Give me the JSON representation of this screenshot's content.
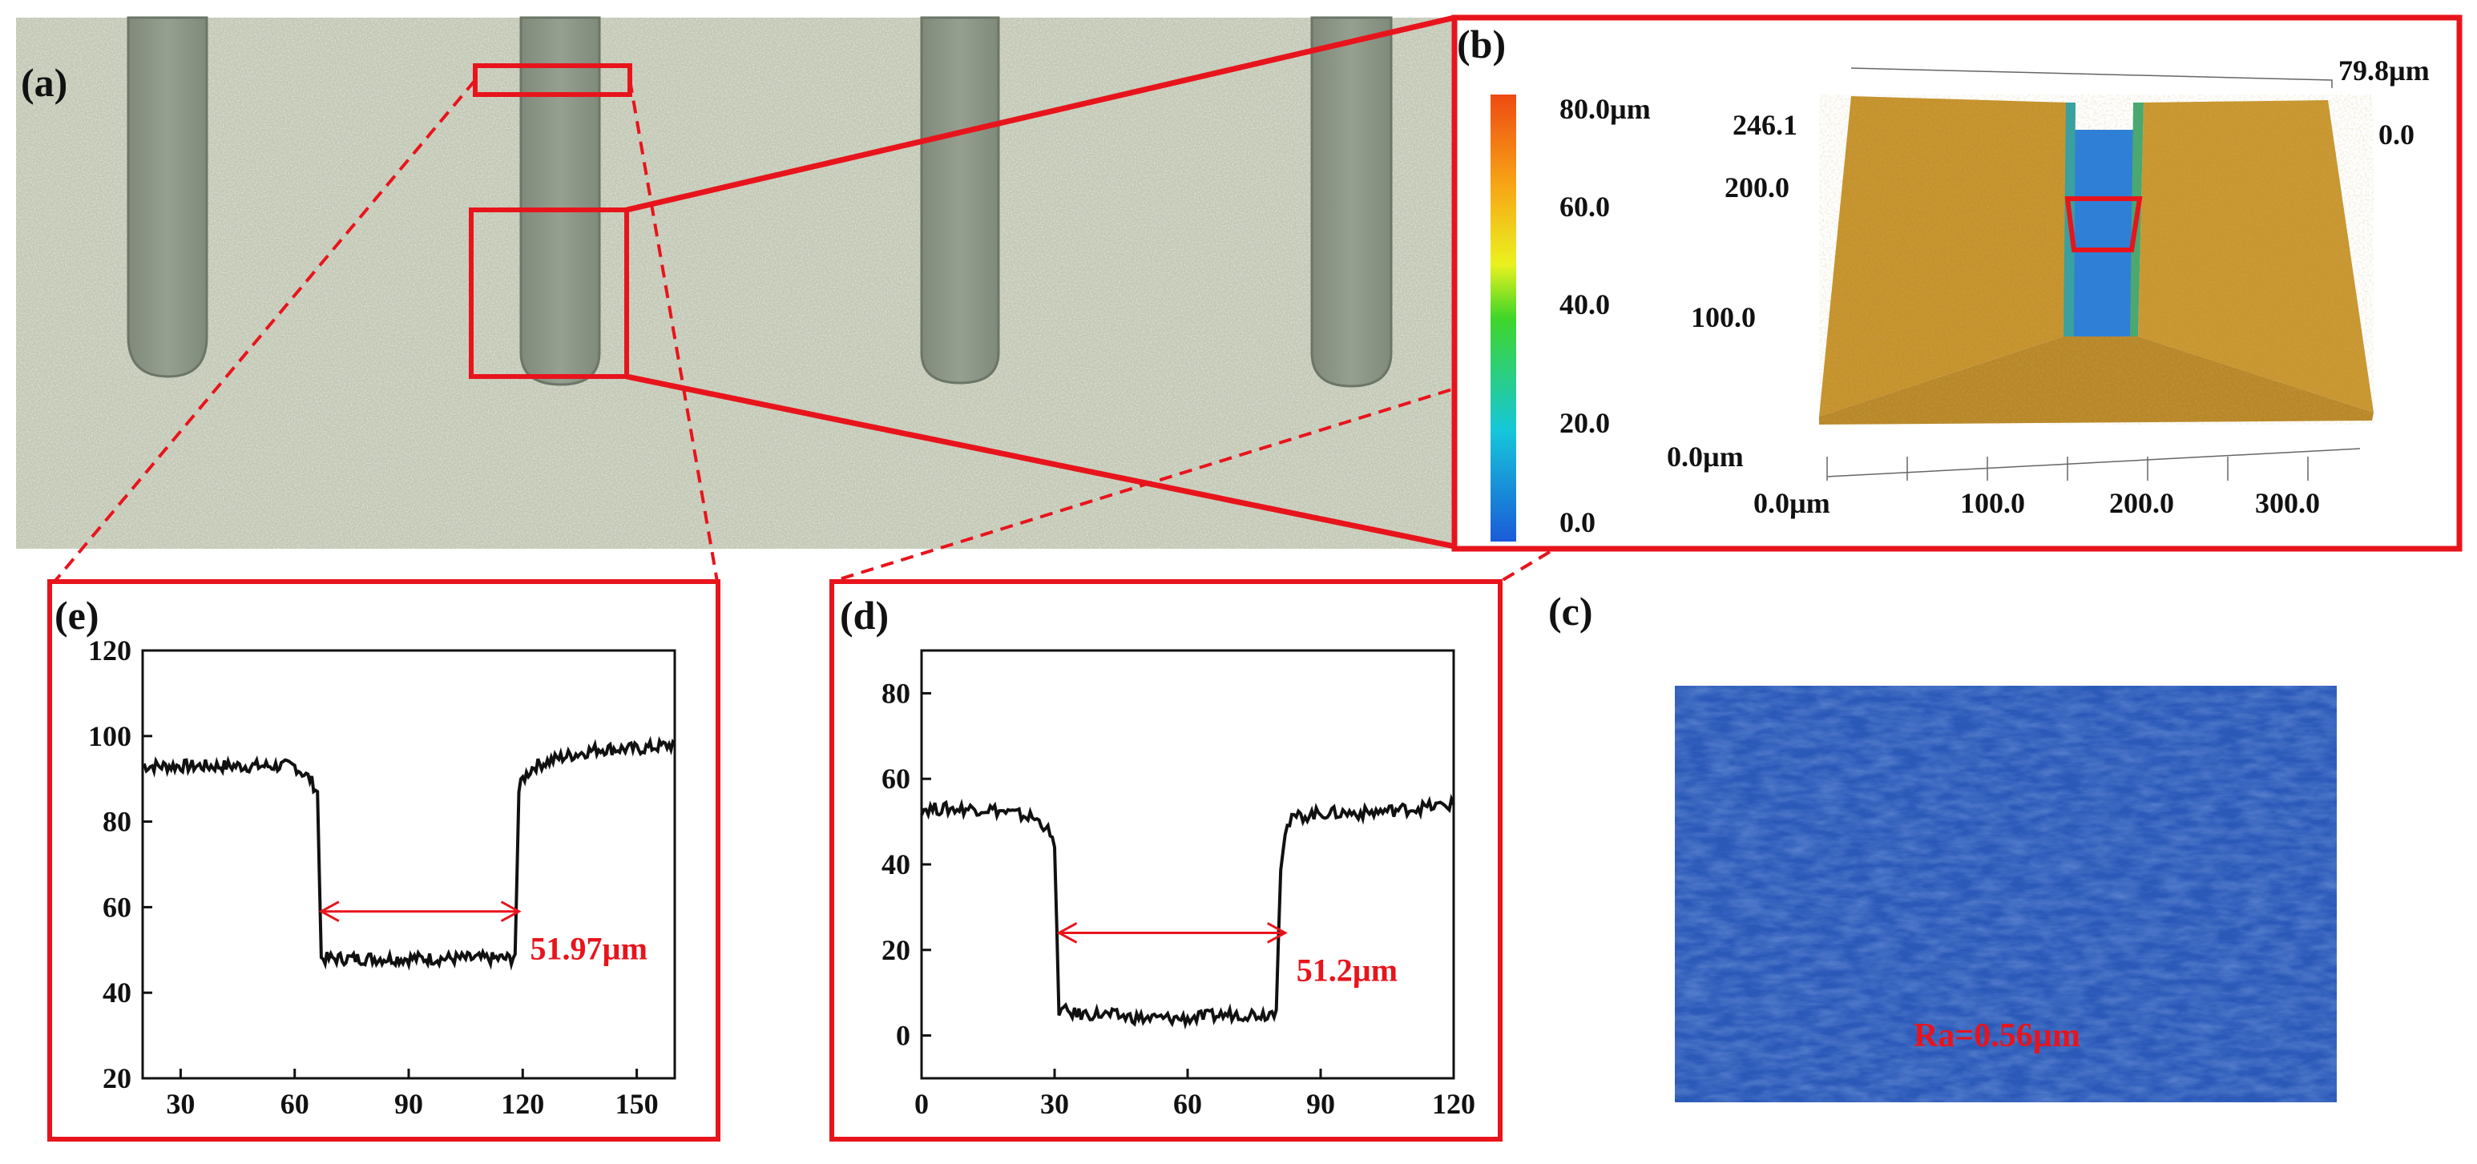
{
  "panel_labels": {
    "a": "(a)",
    "b": "(b)",
    "c": "(c)",
    "d": "(d)",
    "e": "(e)"
  },
  "colors": {
    "accent": "#e8141c",
    "trace": "#111111",
    "optical_bg": "#c3c8b6",
    "groove": "#8e9888",
    "laser_blue": "#2a59b8"
  },
  "panel_b": {
    "colorbar_ticks": [
      "80.0µm",
      "60.0",
      "40.0",
      "20.0",
      "0.0"
    ],
    "y_top": "246.1",
    "y_ticks": [
      "200.0",
      "100.0"
    ],
    "y_origin": "0.0µm",
    "x_ticks": [
      "0.0µm",
      "100.0",
      "200.0",
      "300.0"
    ],
    "z_max": "79.8µm",
    "z_min": "0.0"
  },
  "panel_c": {
    "roughness_label": "Ra=0.56µm"
  },
  "chart_data": [
    {
      "panel": "(e)",
      "type": "line",
      "xticks": [
        "30",
        "60",
        "90",
        "120",
        "150"
      ],
      "yticks": [
        "120",
        "100",
        "80",
        "60",
        "40",
        "20"
      ],
      "xlim": [
        20,
        160
      ],
      "ylim": [
        20,
        120
      ],
      "annotation": "51.97µm",
      "arrow": [
        67,
        119,
        59
      ],
      "x": [
        20,
        30,
        40,
        50,
        55,
        60,
        64,
        66,
        67,
        70,
        80,
        90,
        100,
        110,
        117,
        118,
        119,
        120,
        123,
        130,
        140,
        150,
        160
      ],
      "y": [
        93,
        93,
        93,
        93,
        93,
        93,
        90,
        87,
        48,
        48,
        48,
        48,
        48,
        48,
        48,
        49,
        87,
        90,
        93,
        95,
        97,
        97,
        98
      ]
    },
    {
      "panel": "(d)",
      "type": "line",
      "xticks": [
        "0",
        "30",
        "60",
        "90",
        "120"
      ],
      "yticks": [
        "80",
        "60",
        "40",
        "20",
        "0"
      ],
      "xlim": [
        0,
        120
      ],
      "ylim": [
        -10,
        90
      ],
      "annotation": "51.2µm",
      "arrow": [
        31,
        82,
        24
      ],
      "x": [
        0,
        5,
        10,
        15,
        20,
        25,
        28,
        30,
        31,
        35,
        40,
        50,
        60,
        70,
        78,
        80,
        81,
        82,
        84,
        90,
        100,
        110,
        120
      ],
      "y": [
        53,
        53,
        53,
        53,
        52,
        51,
        49,
        44,
        6,
        5,
        5,
        4,
        4,
        5,
        5,
        6,
        40,
        48,
        51,
        52,
        52,
        53,
        54
      ]
    }
  ]
}
